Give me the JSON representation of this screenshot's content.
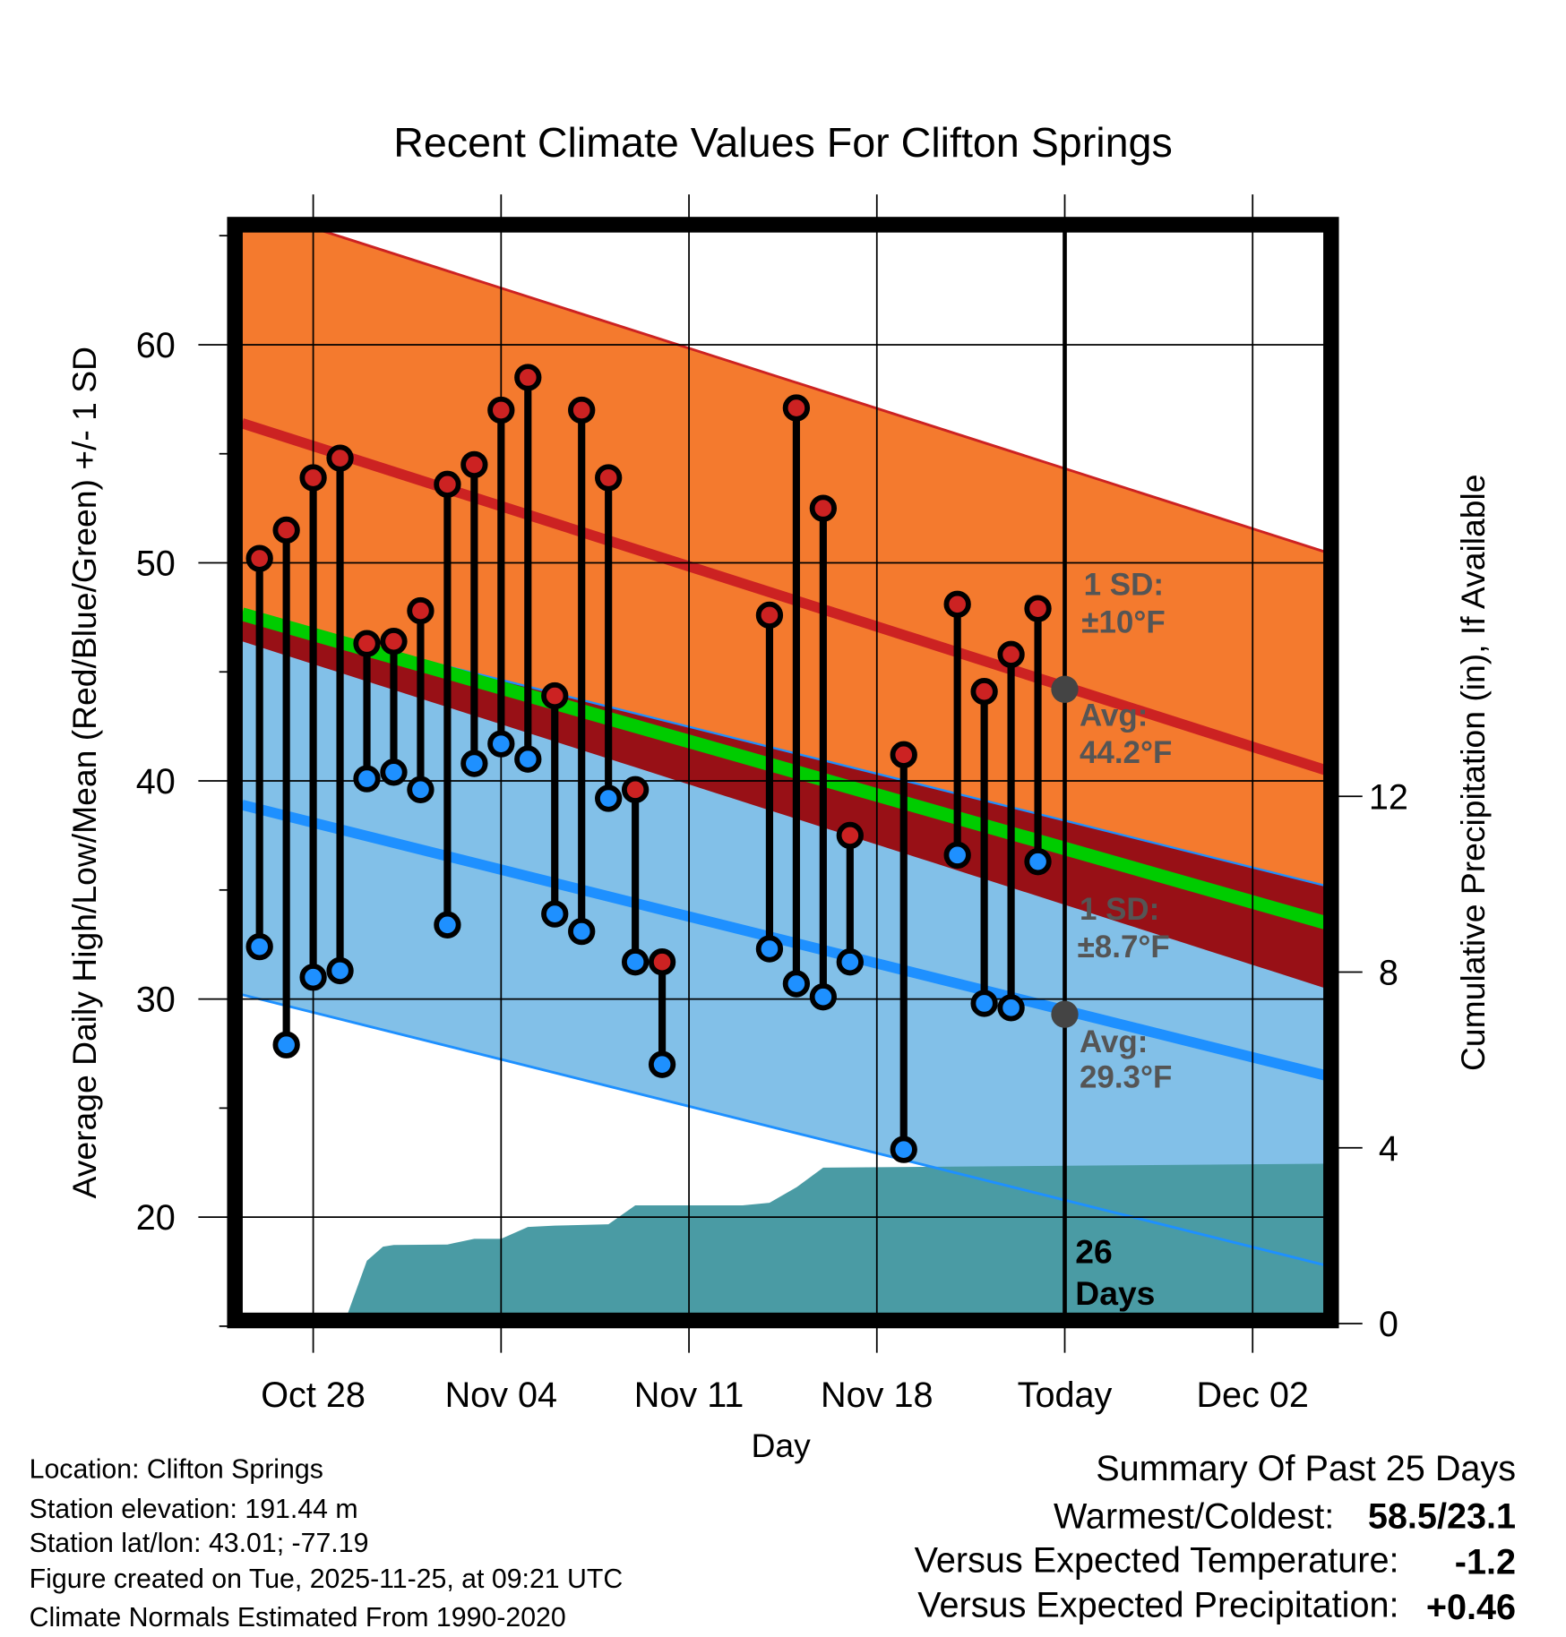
{
  "chart_data": {
    "type": "line",
    "title": "Recent Climate Values For Clifton Springs",
    "xlabel": "Day",
    "ylabel": "Average Daily High/Low/Mean (Red/Blue/Green) +/- 1 SD",
    "y2label": "Cumulative Precipitation (in), If Available",
    "x_origin": "Oct 28",
    "xlim_days": [
      -2.65,
      37.7
    ],
    "ylim": [
      15.5,
      65.2
    ],
    "y2lim": [
      0,
      24.9
    ],
    "x_ticks": [
      {
        "day": 0,
        "label": "Oct 28"
      },
      {
        "day": 7,
        "label": "Nov 04"
      },
      {
        "day": 14,
        "label": "Nov 11"
      },
      {
        "day": 21,
        "label": "Nov 18"
      },
      {
        "day": 28,
        "label": "Today"
      },
      {
        "day": 35,
        "label": "Dec 02"
      }
    ],
    "y_ticks": [
      {
        "v": 20,
        "label": "20"
      },
      {
        "v": 30,
        "label": "30"
      },
      {
        "v": 40,
        "label": "40"
      },
      {
        "v": 50,
        "label": "50"
      },
      {
        "v": 60,
        "label": "60"
      }
    ],
    "y_minor": [
      15,
      25,
      35,
      45,
      55,
      65
    ],
    "y2_ticks": [
      {
        "v": 0,
        "label": "0"
      },
      {
        "v": 4,
        "label": "4"
      },
      {
        "v": 8,
        "label": "8"
      },
      {
        "v": 12,
        "label": "12"
      }
    ],
    "grid": true,
    "normals": {
      "high_avg": {
        "start": 56.4,
        "end": 40.5
      },
      "low_avg": {
        "start": 38.9,
        "end": 26.5
      },
      "high_sd": 10,
      "low_sd": 8.7
    },
    "daily": [
      {
        "day": -2,
        "high": 50.2,
        "low": 32.4
      },
      {
        "day": -1,
        "high": 51.5,
        "low": 27.9
      },
      {
        "day": 0,
        "high": 53.9,
        "low": 31.0
      },
      {
        "day": 1,
        "high": 54.8,
        "low": 31.3
      },
      {
        "day": 2,
        "high": 46.3,
        "low": 40.1
      },
      {
        "day": 3,
        "high": 46.4,
        "low": 40.4
      },
      {
        "day": 4,
        "high": 47.8,
        "low": 39.6
      },
      {
        "day": 5,
        "high": 53.6,
        "low": 33.4
      },
      {
        "day": 6,
        "high": 54.5,
        "low": 40.8
      },
      {
        "day": 7,
        "high": 57.0,
        "low": 41.7
      },
      {
        "day": 8,
        "high": 58.5,
        "low": 41.0
      },
      {
        "day": 9,
        "high": 43.9,
        "low": 33.9
      },
      {
        "day": 10,
        "high": 57.0,
        "low": 33.1
      },
      {
        "day": 11,
        "high": 53.9,
        "low": 39.2
      },
      {
        "day": 12,
        "high": 39.6,
        "low": 31.7
      },
      {
        "day": 13,
        "high": 31.7,
        "low": 27.0
      },
      {
        "day": 17,
        "high": 47.6,
        "low": 32.3
      },
      {
        "day": 18,
        "high": 57.1,
        "low": 30.7
      },
      {
        "day": 19,
        "high": 52.5,
        "low": 30.1
      },
      {
        "day": 20,
        "high": 37.5,
        "low": 31.7
      },
      {
        "day": 22,
        "high": 41.2,
        "low": 23.1
      },
      {
        "day": 24,
        "high": 48.1,
        "low": 36.6
      },
      {
        "day": 25,
        "high": 44.1,
        "low": 29.8
      },
      {
        "day": 26,
        "high": 45.8,
        "low": 29.6
      },
      {
        "day": 27,
        "high": 47.9,
        "low": 36.3
      }
    ],
    "precip_cumulative": [
      {
        "day": 1.15,
        "in": 0
      },
      {
        "day": 2,
        "in": 1.43
      },
      {
        "day": 2.6,
        "in": 1.75
      },
      {
        "day": 3,
        "in": 1.79
      },
      {
        "day": 5,
        "in": 1.8
      },
      {
        "day": 6,
        "in": 1.93
      },
      {
        "day": 7,
        "in": 1.93
      },
      {
        "day": 8,
        "in": 2.2
      },
      {
        "day": 9,
        "in": 2.23
      },
      {
        "day": 11,
        "in": 2.26
      },
      {
        "day": 12,
        "in": 2.69
      },
      {
        "day": 16,
        "in": 2.69
      },
      {
        "day": 17,
        "in": 2.75
      },
      {
        "day": 18,
        "in": 3.1
      },
      {
        "day": 19,
        "in": 3.55
      },
      {
        "day": 37.7,
        "in": 3.64
      }
    ],
    "annotations": {
      "high_sd_line1": "1 SD:",
      "high_sd_line2": "±10°F",
      "high_avg_line1": "Avg:",
      "high_avg_line2": "44.2°F",
      "low_sd_line1": "1 SD:",
      "low_sd_line2": "±8.7°F",
      "low_avg_line1": "Avg:",
      "low_avg_line2": "29.3°F",
      "days_line1": "26",
      "days_line2": "Days",
      "high_avg_today": 44.2,
      "low_avg_today": 29.3
    }
  },
  "colors": {
    "high_band": "#f47a2e",
    "low_band": "#82c0e8",
    "overlap": "#981016",
    "high_line": "#cc2222",
    "low_line": "#1e90ff",
    "mean_line": "#00cc00",
    "precip": "#4a9ba4",
    "today_dot": "#444444"
  },
  "footer": {
    "location": "Location: Clifton Springs",
    "elevation": "Station elevation: 191.44 m",
    "latlon": "Station lat/lon: 43.01; -77.19",
    "created": "Figure created on Tue, 2025-11-25, at 09:21 UTC",
    "normals": "Climate Normals Estimated From 1990-2020"
  },
  "summary": {
    "title": "Summary Of Past 25 Days",
    "warmest_label": "Warmest/Coldest:",
    "warmest_value": "58.5/23.1",
    "temp_label": "Versus Expected Temperature:",
    "temp_value": "-1.2",
    "precip_label": "Versus Expected Precipitation:",
    "precip_value": "+0.46"
  }
}
